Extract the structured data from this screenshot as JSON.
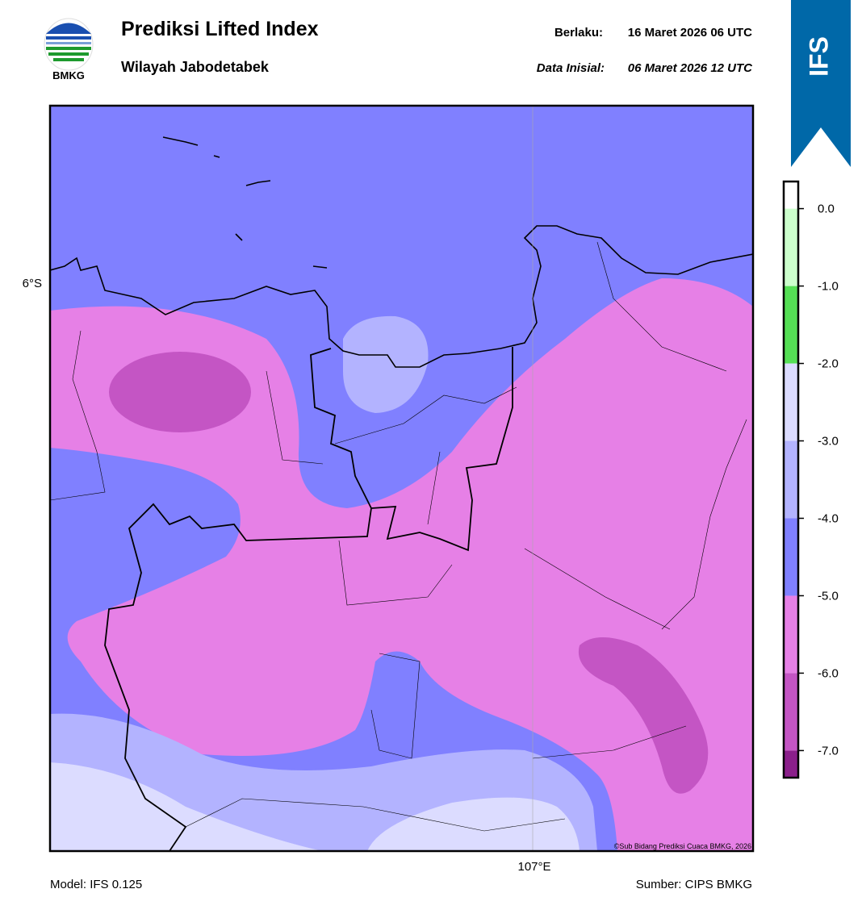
{
  "header": {
    "title": "Prediksi Lifted Index",
    "subtitle": "Wilayah Jabodetabek",
    "logo_text": "BMKG",
    "valid_label": "Berlaku:",
    "valid_time": "16 Maret 2026 06 UTC",
    "init_label": "Data Inisial:",
    "init_time": "06 Maret 2026 12 UTC",
    "badge": "IFS"
  },
  "map": {
    "lat_label": "6°S",
    "lon_label": "107°E",
    "credit": "©Sub Bidang Prediksi Cuaca BMKG, 2026"
  },
  "colorbar": {
    "lim": [
      -7.35,
      0.35
    ],
    "ticks": [
      {
        "value": -7,
        "label": "-7.0"
      },
      {
        "value": -6,
        "label": "-6.0"
      },
      {
        "value": -5,
        "label": "-5.0"
      },
      {
        "value": -4,
        "label": "-4.0"
      },
      {
        "value": -3,
        "label": "-3.0"
      },
      {
        "value": -2,
        "label": "-2.0"
      },
      {
        "value": -1,
        "label": "-1.0"
      },
      {
        "value": 0,
        "label": "0.0"
      }
    ],
    "colors": [
      "#8b1f8b",
      "#c455c4",
      "#e680e6",
      "#8080ff",
      "#b3b3ff",
      "#dcdcff",
      "#55e055",
      "#ccffcc",
      "#ffffff"
    ]
  },
  "footer": {
    "model": "Model: IFS 0.125",
    "source": "Sumber: CIPS BMKG"
  }
}
